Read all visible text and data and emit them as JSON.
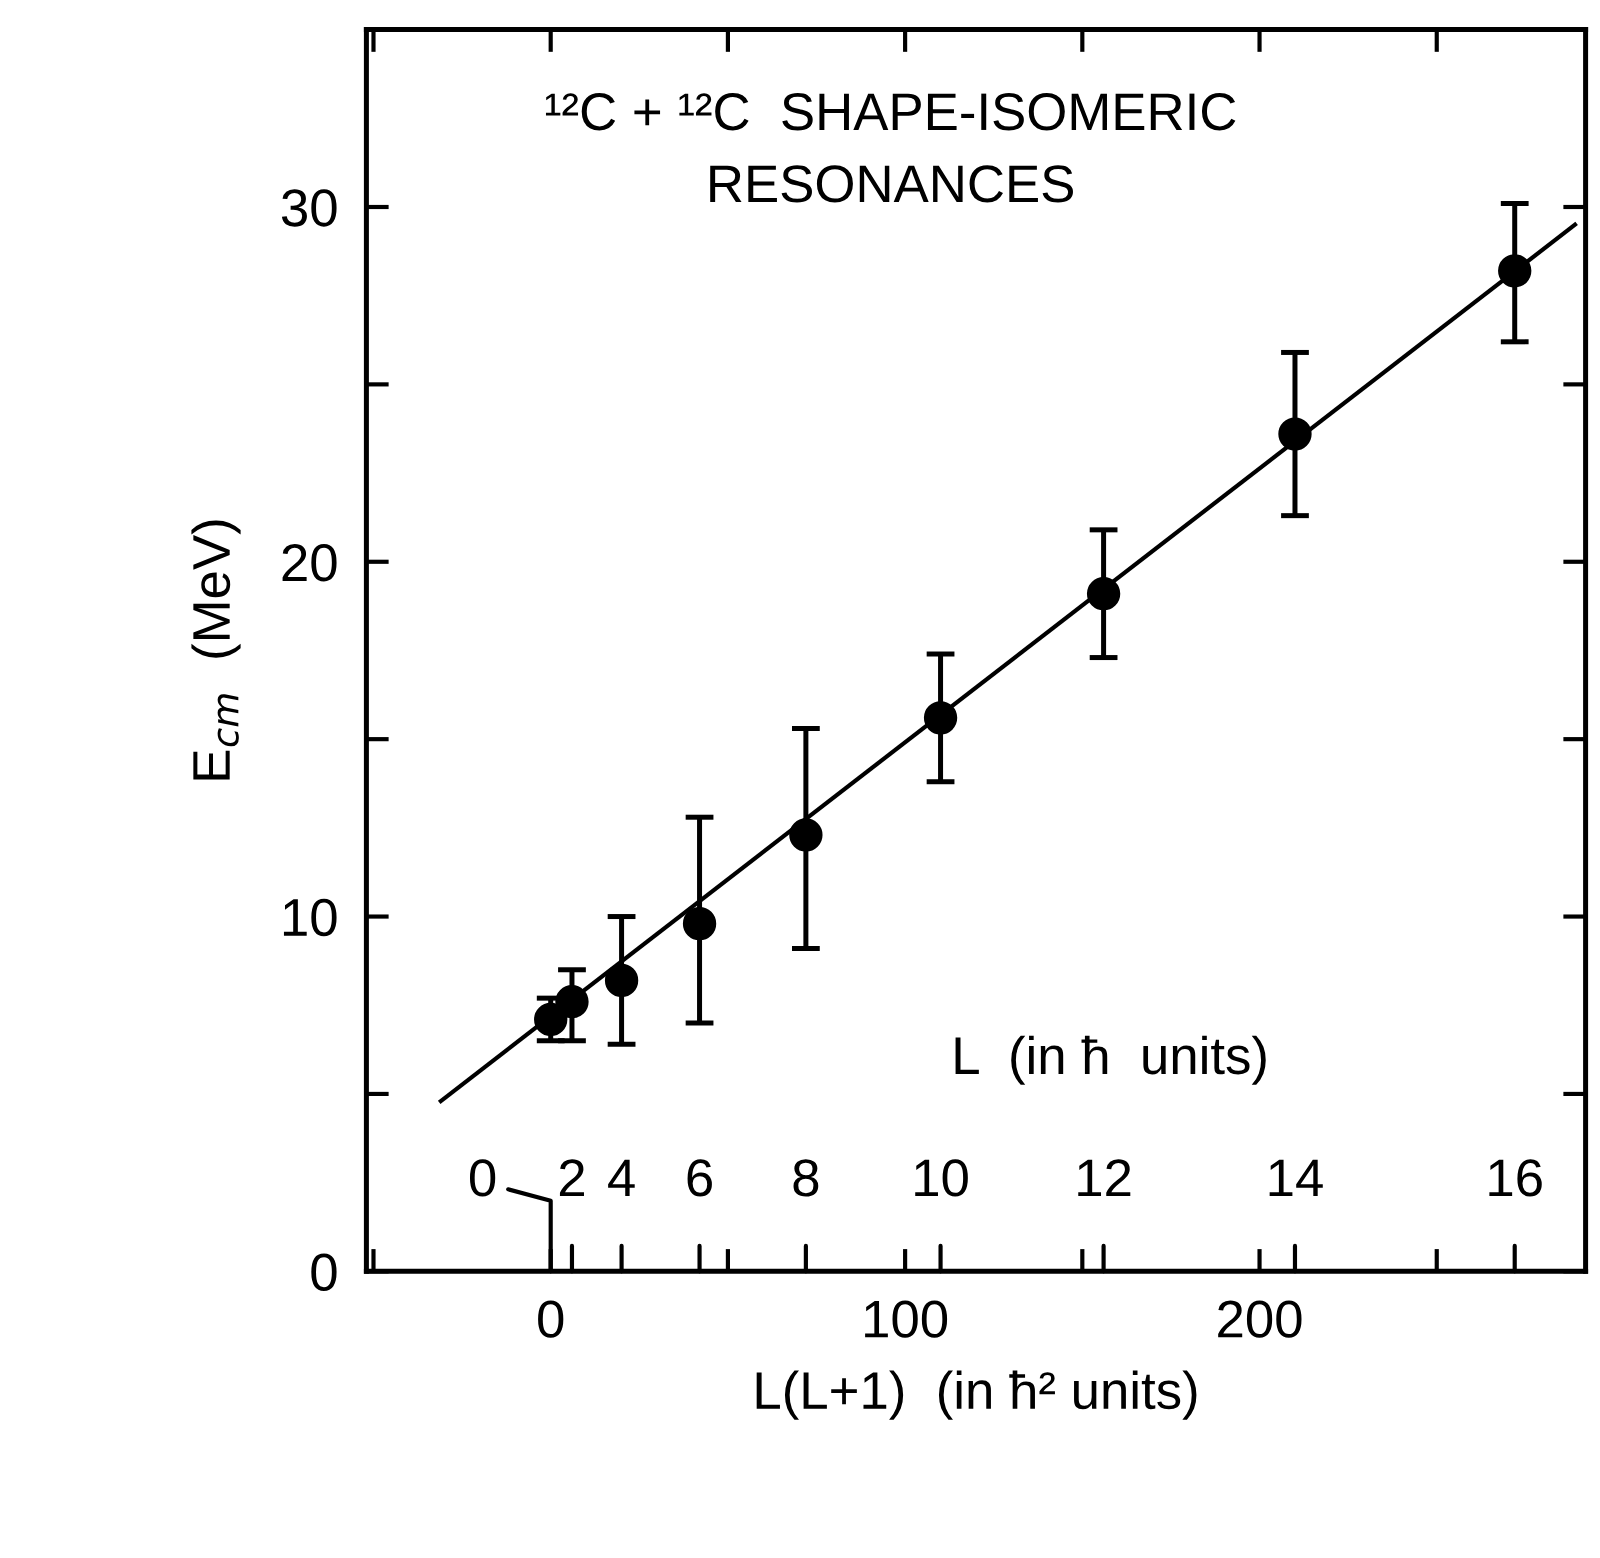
{
  "chart_data": {
    "type": "scatter",
    "annotations": [
      "¹²C + ¹²C  SHAPE-ISOMERIC\nRESONANCES",
      "L  (in ħ  units)",
      "0",
      "2",
      "4",
      "6",
      "8",
      "10",
      "12",
      "14",
      "16"
    ],
    "xlabel": "L(L+1)  (in ħ² units)",
    "ylabel": "E$_{cm}$  (MeV)",
    "series": [
      {
        "type": "scatter",
        "color": "#000000",
        "x": [
          0,
          6,
          20,
          42,
          72,
          110,
          156,
          210,
          272
        ],
        "values": [
          7.1,
          7.6,
          8.2,
          9.8,
          12.3,
          15.6,
          19.1,
          23.6,
          28.2
        ],
        "errors": [
          [
            6.5,
            7.7
          ],
          [
            6.5,
            8.5
          ],
          [
            6.4,
            10.0
          ],
          [
            7.0,
            12.8
          ],
          [
            9.1,
            15.3
          ],
          [
            13.8,
            17.4
          ],
          [
            17.3,
            20.9
          ],
          [
            21.3,
            25.9
          ],
          [
            26.2,
            30.1
          ]
        ],
        "marker": "circle"
      },
      {
        "type": "line",
        "color": "#000000",
        "x": [
          -31,
          289
        ],
        "values": [
          4.8,
          29.5
        ],
        "line_style": "solid",
        "marker": "none"
      }
    ],
    "xlim": [
      -52,
      292
    ],
    "xticks": [
      {
        "value": -50,
        "label": null
      },
      0,
      {
        "value": 50,
        "label": null
      },
      100,
      {
        "value": 150,
        "label": null
      },
      200,
      {
        "value": 250,
        "label": null
      }
    ],
    "ylim": [
      0,
      35
    ],
    "yticks": [
      0,
      {
        "value": 5,
        "label": null
      },
      10,
      {
        "value": 15,
        "label": null
      },
      20,
      {
        "value": 25,
        "label": null
      },
      30,
      {
        "value": 35,
        "label": null
      }
    ],
    "grid": false,
    "legend": false
  }
}
